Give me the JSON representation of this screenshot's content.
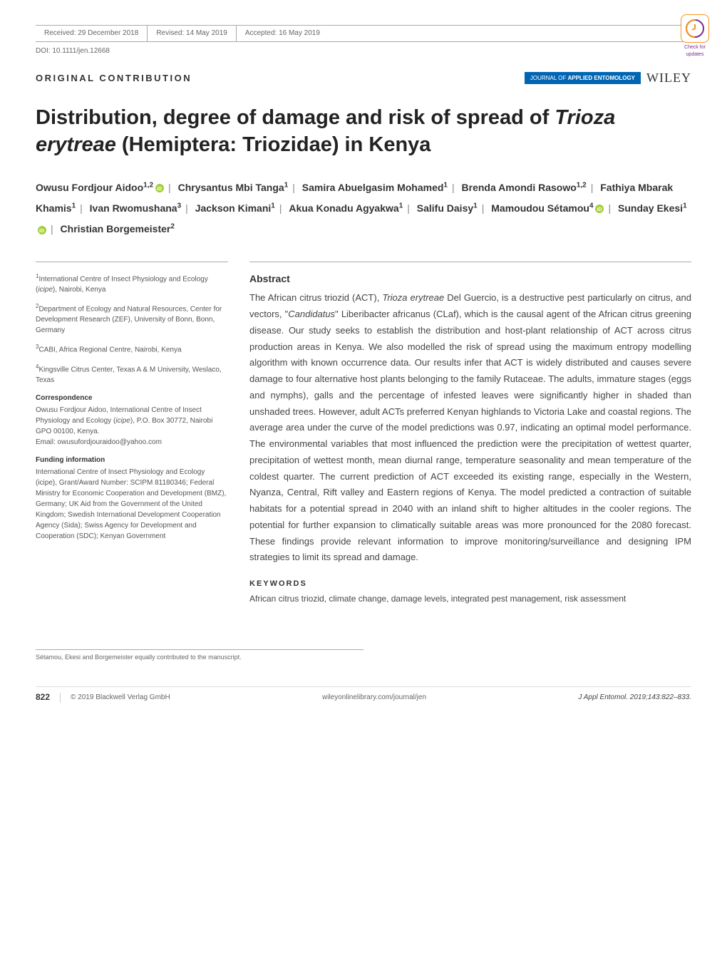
{
  "meta": {
    "received": "Received: 29 December 2018",
    "revised": "Revised: 14 May 2019",
    "accepted": "Accepted: 16 May 2019",
    "doi": "DOI: 10.1111/jen.12668",
    "check_updates": "Check for updates"
  },
  "contribution_label": "ORIGINAL CONTRIBUTION",
  "journal_badge": {
    "prefix": "JOURNAL OF",
    "main": "APPLIED ENTOMOLOGY",
    "publisher": "WILEY"
  },
  "title_plain": "Distribution, degree of damage and risk of spread of ",
  "title_species": "Trioza erytreae",
  "title_suffix": " (Hemiptera: Triozidae) in Kenya",
  "authors": [
    {
      "name": "Owusu Fordjour Aidoo",
      "sup": "1,2",
      "orcid": true
    },
    {
      "name": "Chrysantus Mbi Tanga",
      "sup": "1",
      "orcid": false
    },
    {
      "name": "Samira Abuelgasim Mohamed",
      "sup": "1",
      "orcid": false
    },
    {
      "name": "Brenda Amondi Rasowo",
      "sup": "1,2",
      "orcid": false
    },
    {
      "name": "Fathiya Mbarak Khamis",
      "sup": "1",
      "orcid": false
    },
    {
      "name": "Ivan Rwomushana",
      "sup": "3",
      "orcid": false
    },
    {
      "name": "Jackson Kimani",
      "sup": "1",
      "orcid": false
    },
    {
      "name": "Akua Konadu Agyakwa",
      "sup": "1",
      "orcid": false
    },
    {
      "name": "Salifu Daisy",
      "sup": "1",
      "orcid": false
    },
    {
      "name": "Mamoudou Sétamou",
      "sup": "4",
      "orcid": true
    },
    {
      "name": "Sunday Ekesi",
      "sup": "1",
      "orcid": true
    },
    {
      "name": "Christian Borgemeister",
      "sup": "2",
      "orcid": false
    }
  ],
  "affiliations": {
    "a1": {
      "sup": "1",
      "text": "International Centre of Insect Physiology and Ecology (",
      "italic": "icipe",
      "suffix": "), Nairobi, Kenya"
    },
    "a2": {
      "sup": "2",
      "text": "Department of Ecology and Natural Resources, Center for Development Research (ZEF), University of Bonn, Bonn, Germany"
    },
    "a3": {
      "sup": "3",
      "text": "CABI, Africa Regional Centre, Nairobi, Kenya"
    },
    "a4": {
      "sup": "4",
      "text": "Kingsville Citrus Center, Texas A & M University, Weslaco, Texas"
    }
  },
  "correspondence": {
    "head": "Correspondence",
    "text": "Owusu Fordjour Aidoo, International Centre of Insect Physiology and Ecology (",
    "italic": "icipe",
    "suffix": "), P.O. Box 30772, Nairobi GPO 00100, Kenya.",
    "email_label": "Email: owusufordjouraidoo@yahoo.com"
  },
  "funding": {
    "head": "Funding information",
    "text": "International Centre of Insect Physiology and Ecology (icipe), Grant/Award Number: SCIPM 81180346; Federal Ministry for Economic Cooperation and Development (BMZ), Germany; UK Aid from the Government of the United Kingdom; Swedish International Development Cooperation Agency (Sida); Swiss Agency for Development and Cooperation (SDC); Kenyan Government"
  },
  "abstract": {
    "head": "Abstract",
    "text_parts": {
      "p1": "The African citrus triozid (ACT), ",
      "i1": "Trioza erytreae",
      "p2": " Del Guercio, is a destructive pest particularly on citrus, and vectors, \"",
      "i2": "Candidatus",
      "p3": "\" Liberibacter africanus (CLaf), which is the causal agent of the African citrus greening disease. Our study seeks to establish the distribution and host-plant relationship of ACT across citrus production areas in Kenya. We also modelled the risk of spread using the maximum entropy modelling algorithm with known occurrence data. Our results infer that ACT is widely distributed and causes severe damage to four alternative host plants belonging to the family Rutaceae. The adults, immature stages (eggs and nymphs), galls and the percentage of infested leaves were significantly higher in shaded than unshaded trees. However, adult ACTs preferred Kenyan highlands to Victoria Lake and coastal regions. The average area under the curve of the model predictions was 0.97, indicating an optimal model performance. The environmental variables that most influenced the prediction were the precipitation of wettest quarter, precipitation of wettest month, mean diurnal range, temperature seasonality and mean temperature of the coldest quarter. The current prediction of ACT exceeded its existing range, especially in the Western, Nyanza, Central, Rift valley and Eastern regions of Kenya. The model predicted a contraction of suitable habitats for a potential spread in 2040 with an inland shift to higher altitudes in the cooler regions. The potential for further expansion to climatically suitable areas was more pronounced for the 2080 forecast. These findings provide relevant information to improve monitoring/surveillance and designing IPM strategies to limit its spread and damage."
    }
  },
  "keywords": {
    "head": "KEYWORDS",
    "text": "African citrus triozid, climate change, damage levels, integrated pest management, risk assessment"
  },
  "footnote": "Sétamou, Ekesi and Borgemeister equally contributed to the manuscript.",
  "footer": {
    "page": "822",
    "copyright": "© 2019 Blackwell Verlag GmbH",
    "url": "wileyonlinelibrary.com/journal/jen",
    "citation": "J Appl Entomol. 2019;143:822–833."
  },
  "colors": {
    "journal_badge_bg": "#0066b3",
    "orcid_bg": "#a6ce39",
    "check_border": "#f7941d",
    "check_text": "#7b2d8e",
    "text_body": "#444444",
    "text_meta": "#666666",
    "rule": "#aaaaaa"
  }
}
